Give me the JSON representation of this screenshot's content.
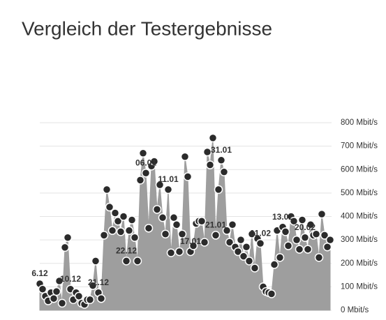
{
  "chart_data": {
    "type": "area",
    "title": "Vergleich der Testergebnisse",
    "categories": [
      "6.12",
      null,
      null,
      null,
      null,
      null,
      null,
      null,
      null,
      null,
      null,
      "10.12",
      null,
      null,
      null,
      null,
      null,
      null,
      null,
      null,
      null,
      "21.12",
      null,
      null,
      null,
      null,
      null,
      null,
      null,
      null,
      null,
      "22.12",
      null,
      null,
      null,
      null,
      null,
      null,
      "06.01",
      null,
      null,
      null,
      null,
      null,
      null,
      null,
      "11.01",
      null,
      null,
      null,
      null,
      null,
      null,
      null,
      "17.01",
      null,
      null,
      null,
      null,
      null,
      null,
      null,
      null,
      "21.01",
      null,
      "31.01",
      null,
      null,
      null,
      null,
      null,
      null,
      null,
      null,
      null,
      null,
      null,
      null,
      null,
      "01.02",
      null,
      null,
      null,
      null,
      null,
      null,
      null,
      "13.02",
      null,
      null,
      null,
      null,
      null,
      null,
      null,
      "20.02",
      null,
      null,
      null,
      null,
      null,
      null,
      null,
      null,
      null
    ],
    "values": [
      113,
      90,
      60,
      40,
      75,
      50,
      80,
      125,
      30,
      268,
      310,
      90,
      45,
      75,
      60,
      30,
      25,
      45,
      45,
      105,
      210,
      75,
      50,
      320,
      515,
      440,
      340,
      415,
      380,
      335,
      400,
      210,
      340,
      385,
      310,
      210,
      555,
      670,
      585,
      350,
      615,
      635,
      430,
      535,
      395,
      325,
      515,
      245,
      395,
      365,
      250,
      325,
      655,
      570,
      250,
      275,
      370,
      380,
      380,
      290,
      675,
      620,
      735,
      320,
      515,
      640,
      590,
      340,
      290,
      365,
      270,
      250,
      300,
      230,
      270,
      210,
      325,
      180,
      305,
      285,
      100,
      80,
      75,
      70,
      195,
      340,
      225,
      355,
      335,
      275,
      400,
      380,
      300,
      260,
      385,
      310,
      260,
      365,
      320,
      325,
      225,
      410,
      320,
      270,
      300
    ],
    "color": "#9e9e9e",
    "marker_color": "#2b2b2b",
    "ylim": [
      0,
      800
    ],
    "yticks": [
      {
        "value": 0,
        "label": "0 Mbit/s"
      },
      {
        "value": 100,
        "label": "100 Mbit/s"
      },
      {
        "value": 200,
        "label": "200 Mbit/s"
      },
      {
        "value": 300,
        "label": "300 Mbit/s"
      },
      {
        "value": 400,
        "label": "400 Mbit/s"
      },
      {
        "value": 500,
        "label": "500 Mbit/s"
      },
      {
        "value": 600,
        "label": "600 Mbit/s"
      },
      {
        "value": 700,
        "label": "700 Mbit/s"
      },
      {
        "value": 800,
        "label": "800 Mbit/s"
      }
    ],
    "grid": true
  }
}
